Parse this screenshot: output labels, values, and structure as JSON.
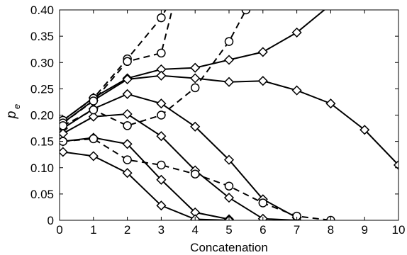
{
  "chart_data": {
    "type": "line",
    "xlabel": "Concatenation",
    "ylabel_main": "p",
    "ylabel_sub": "e",
    "xlim": [
      0,
      10
    ],
    "ylim": [
      0,
      0.4
    ],
    "x_ticks": [
      0,
      1,
      2,
      3,
      4,
      5,
      6,
      7,
      8,
      9,
      10
    ],
    "y_ticks": [
      0,
      0.05,
      0.1,
      0.15,
      0.2,
      0.25,
      0.3,
      0.35,
      0.4
    ],
    "x_tick_labels": [
      "0",
      "1",
      "2",
      "3",
      "4",
      "5",
      "6",
      "7",
      "8",
      "9",
      "10"
    ],
    "y_tick_labels": [
      "0",
      "0.05",
      "0.10",
      "0.15",
      "0.20",
      "0.25",
      "0.30",
      "0.35",
      "0.40"
    ],
    "grid": false,
    "series": [
      {
        "marker": "diamond",
        "style": "solid",
        "x": [
          0.1,
          1,
          2,
          3,
          4,
          5,
          6,
          7,
          8
        ],
        "y": [
          0.19,
          0.233,
          0.27,
          0.287,
          0.29,
          0.305,
          0.32,
          0.357,
          0.41
        ]
      },
      {
        "marker": "diamond",
        "style": "solid",
        "x": [
          0.1,
          1,
          2,
          3,
          4,
          5,
          6,
          7,
          8,
          9,
          10
        ],
        "y": [
          0.185,
          0.228,
          0.268,
          0.275,
          0.27,
          0.263,
          0.265,
          0.247,
          0.222,
          0.172,
          0.105
        ]
      },
      {
        "marker": "diamond",
        "style": "solid",
        "x": [
          0.1,
          1,
          2,
          3,
          4,
          5,
          6,
          7
        ],
        "y": [
          0.175,
          0.212,
          0.24,
          0.222,
          0.178,
          0.115,
          0.04,
          0.005
        ]
      },
      {
        "marker": "diamond",
        "style": "solid",
        "x": [
          0.1,
          1,
          2,
          3,
          4,
          5,
          6,
          7
        ],
        "y": [
          0.165,
          0.197,
          0.202,
          0.16,
          0.095,
          0.043,
          0.003,
          0
        ]
      },
      {
        "marker": "diamond",
        "style": "solid",
        "x": [
          0.1,
          1,
          2,
          3,
          4,
          5
        ],
        "y": [
          0.15,
          0.157,
          0.145,
          0.077,
          0.015,
          0.002
        ]
      },
      {
        "marker": "diamond",
        "style": "solid",
        "x": [
          0.1,
          1,
          2,
          3,
          4,
          5
        ],
        "y": [
          0.13,
          0.122,
          0.09,
          0.028,
          0.002,
          0
        ]
      },
      {
        "marker": "circle",
        "style": "dashed",
        "x": [
          0.1,
          1,
          2,
          3,
          3.3
        ],
        "y": [
          0.19,
          0.232,
          0.307,
          0.385,
          0.42
        ]
      },
      {
        "marker": "circle",
        "style": "dashed",
        "x": [
          0.1,
          1,
          2,
          3,
          3.4
        ],
        "y": [
          0.185,
          0.227,
          0.302,
          0.318,
          0.42
        ]
      },
      {
        "marker": "circle",
        "style": "dashed",
        "x": [
          0.1,
          1,
          2,
          3,
          4,
          5,
          5.5
        ],
        "y": [
          0.18,
          0.21,
          0.18,
          0.2,
          0.252,
          0.34,
          0.4
        ]
      },
      {
        "marker": "circle",
        "style": "dashed",
        "x": [
          0.1,
          1,
          2,
          3,
          4,
          5,
          6,
          7,
          8
        ],
        "y": [
          0.15,
          0.155,
          0.115,
          0.105,
          0.088,
          0.065,
          0.033,
          0.008,
          0
        ]
      }
    ]
  }
}
